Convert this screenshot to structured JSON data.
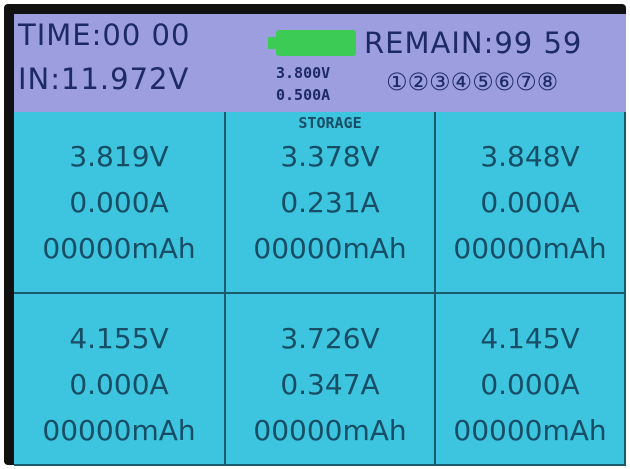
{
  "header": {
    "time": "TIME:00 00",
    "remain": "REMAIN:99 59",
    "input": "IN:11.972V",
    "set_voltage": "3.800V",
    "set_current": "0.500A",
    "channels": "①②③④⑤⑥⑦⑧"
  },
  "cells": [
    {
      "voltage": "3.819V",
      "current": "0.000A",
      "capacity": "00000mAh"
    },
    {
      "mode": "STORAGE",
      "voltage": "3.378V",
      "current": "0.231A",
      "capacity": "00000mAh"
    },
    {
      "voltage": "3.848V",
      "current": "0.000A",
      "capacity": "00000mAh"
    },
    {
      "voltage": "4.155V",
      "current": "0.000A",
      "capacity": "00000mAh"
    },
    {
      "voltage": "3.726V",
      "current": "0.347A",
      "capacity": "00000mAh"
    },
    {
      "voltage": "4.145V",
      "current": "0.000A",
      "capacity": "00000mAh"
    }
  ]
}
